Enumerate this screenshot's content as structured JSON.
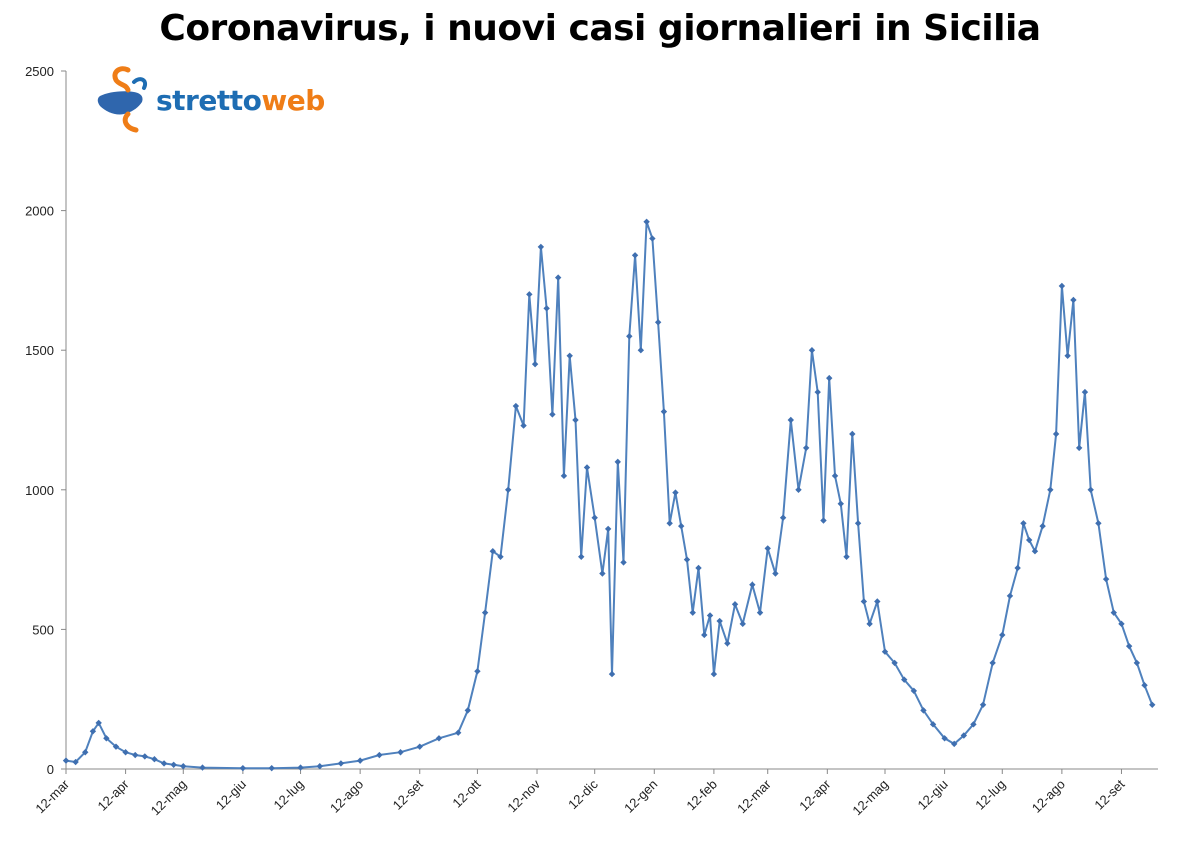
{
  "title": "Coronavirus, i nuovi casi giornalieri in Sicilia",
  "logo": {
    "part1": "stretto",
    "part2": "web"
  },
  "colors": {
    "line": "#4f81bd",
    "marker": "#3f6fb0",
    "axis": "#888888",
    "logo_blue": "#1e6db3",
    "logo_orange": "#ef7d17"
  },
  "chart_data": {
    "type": "line",
    "title": "Coronavirus, i nuovi casi giornalieri in Sicilia",
    "xlabel": "",
    "ylabel": "",
    "ylim": [
      0,
      2500
    ],
    "yticks": [
      0,
      500,
      1000,
      1500,
      2000,
      2500
    ],
    "xticks": [
      "12-mar",
      "12-apr",
      "12-mag",
      "12-giu",
      "12-lug",
      "12-ago",
      "12-set",
      "12-ott",
      "12-nov",
      "12-dic",
      "12-gen",
      "12-feb",
      "12-mar",
      "12-apr",
      "12-mag",
      "12-giu",
      "12-lug",
      "12-ago",
      "12-set"
    ],
    "grid": false,
    "legend": "none",
    "series": [
      {
        "points": [
          [
            "12-mar-2020",
            30
          ],
          [
            "17-mar-2020",
            25
          ],
          [
            "22-mar-2020",
            60
          ],
          [
            "26-mar-2020",
            135
          ],
          [
            "29-mar-2020",
            165
          ],
          [
            "2-apr-2020",
            110
          ],
          [
            "7-apr-2020",
            80
          ],
          [
            "12-apr-2020",
            60
          ],
          [
            "17-apr-2020",
            50
          ],
          [
            "22-apr-2020",
            45
          ],
          [
            "27-apr-2020",
            35
          ],
          [
            "2-mag-2020",
            20
          ],
          [
            "7-mag-2020",
            15
          ],
          [
            "12-mag-2020",
            10
          ],
          [
            "22-mag-2020",
            5
          ],
          [
            "12-giu-2020",
            3
          ],
          [
            "27-giu-2020",
            3
          ],
          [
            "12-lug-2020",
            5
          ],
          [
            "22-lug-2020",
            10
          ],
          [
            "2-ago-2020",
            20
          ],
          [
            "12-ago-2020",
            30
          ],
          [
            "22-ago-2020",
            50
          ],
          [
            "2-set-2020",
            60
          ],
          [
            "12-set-2020",
            80
          ],
          [
            "22-set-2020",
            110
          ],
          [
            "2-ott-2020",
            130
          ],
          [
            "7-ott-2020",
            210
          ],
          [
            "12-ott-2020",
            350
          ],
          [
            "16-ott-2020",
            560
          ],
          [
            "20-ott-2020",
            780
          ],
          [
            "24-ott-2020",
            760
          ],
          [
            "28-ott-2020",
            1000
          ],
          [
            "1-nov-2020",
            1300
          ],
          [
            "5-nov-2020",
            1230
          ],
          [
            "8-nov-2020",
            1700
          ],
          [
            "11-nov-2020",
            1450
          ],
          [
            "14-nov-2020",
            1870
          ],
          [
            "17-nov-2020",
            1650
          ],
          [
            "20-nov-2020",
            1270
          ],
          [
            "23-nov-2020",
            1760
          ],
          [
            "26-nov-2020",
            1050
          ],
          [
            "29-nov-2020",
            1480
          ],
          [
            "2-dic-2020",
            1250
          ],
          [
            "5-dic-2020",
            760
          ],
          [
            "8-dic-2020",
            1080
          ],
          [
            "12-dic-2020",
            900
          ],
          [
            "16-dic-2020",
            700
          ],
          [
            "19-dic-2020",
            860
          ],
          [
            "21-dic-2020",
            340
          ],
          [
            "24-dic-2020",
            1100
          ],
          [
            "27-dic-2020",
            740
          ],
          [
            "30-dic-2020",
            1550
          ],
          [
            "2-gen-2021",
            1840
          ],
          [
            "5-gen-2021",
            1500
          ],
          [
            "8-gen-2021",
            1960
          ],
          [
            "11-gen-2021",
            1900
          ],
          [
            "14-gen-2021",
            1600
          ],
          [
            "17-gen-2021",
            1280
          ],
          [
            "20-gen-2021",
            880
          ],
          [
            "23-gen-2021",
            990
          ],
          [
            "26-gen-2021",
            870
          ],
          [
            "29-gen-2021",
            750
          ],
          [
            "1-feb-2021",
            560
          ],
          [
            "4-feb-2021",
            720
          ],
          [
            "7-feb-2021",
            480
          ],
          [
            "10-feb-2021",
            550
          ],
          [
            "12-feb-2021",
            340
          ],
          [
            "15-feb-2021",
            530
          ],
          [
            "19-feb-2021",
            450
          ],
          [
            "23-feb-2021",
            590
          ],
          [
            "27-feb-2021",
            520
          ],
          [
            "4-mar-2021",
            660
          ],
          [
            "8-mar-2021",
            560
          ],
          [
            "12-mar-2021",
            790
          ],
          [
            "16-mar-2021",
            700
          ],
          [
            "20-mar-2021",
            900
          ],
          [
            "24-mar-2021",
            1250
          ],
          [
            "28-mar-2021",
            1000
          ],
          [
            "1-apr-2021",
            1150
          ],
          [
            "4-apr-2021",
            1500
          ],
          [
            "7-apr-2021",
            1350
          ],
          [
            "10-apr-2021",
            890
          ],
          [
            "13-apr-2021",
            1400
          ],
          [
            "16-apr-2021",
            1050
          ],
          [
            "19-apr-2021",
            950
          ],
          [
            "22-apr-2021",
            760
          ],
          [
            "25-apr-2021",
            1200
          ],
          [
            "28-apr-2021",
            880
          ],
          [
            "1-mag-2021",
            600
          ],
          [
            "4-mag-2021",
            520
          ],
          [
            "8-mag-2021",
            600
          ],
          [
            "12-mag-2021",
            420
          ],
          [
            "17-mag-2021",
            380
          ],
          [
            "22-mag-2021",
            320
          ],
          [
            "27-mag-2021",
            280
          ],
          [
            "1-giu-2021",
            210
          ],
          [
            "6-giu-2021",
            160
          ],
          [
            "12-giu-2021",
            110
          ],
          [
            "17-giu-2021",
            90
          ],
          [
            "22-giu-2021",
            120
          ],
          [
            "27-giu-2021",
            160
          ],
          [
            "2-lug-2021",
            230
          ],
          [
            "7-lug-2021",
            380
          ],
          [
            "12-lug-2021",
            480
          ],
          [
            "16-lug-2021",
            620
          ],
          [
            "20-lug-2021",
            720
          ],
          [
            "23-lug-2021",
            880
          ],
          [
            "26-lug-2021",
            820
          ],
          [
            "29-lug-2021",
            780
          ],
          [
            "2-ago-2021",
            870
          ],
          [
            "6-ago-2021",
            1000
          ],
          [
            "9-ago-2021",
            1200
          ],
          [
            "12-ago-2021",
            1730
          ],
          [
            "15-ago-2021",
            1480
          ],
          [
            "18-ago-2021",
            1680
          ],
          [
            "21-ago-2021",
            1150
          ],
          [
            "24-ago-2021",
            1350
          ],
          [
            "27-ago-2021",
            1000
          ],
          [
            "31-ago-2021",
            880
          ],
          [
            "4-set-2021",
            680
          ],
          [
            "8-set-2021",
            560
          ],
          [
            "12-set-2021",
            520
          ],
          [
            "16-set-2021",
            440
          ],
          [
            "20-set-2021",
            380
          ],
          [
            "24-set-2021",
            300
          ],
          [
            "28-set-2021",
            230
          ]
        ]
      }
    ]
  }
}
